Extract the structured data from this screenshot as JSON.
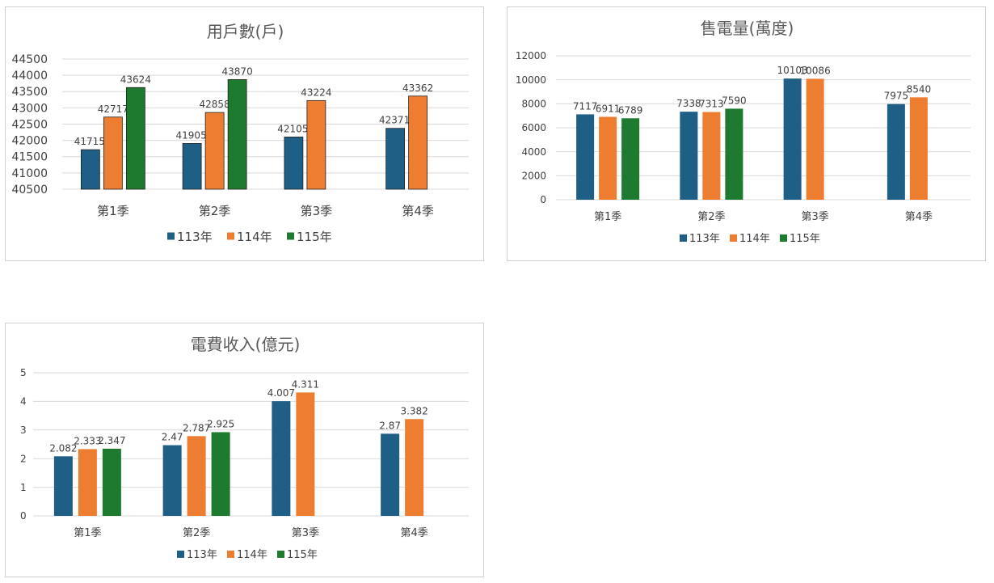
{
  "chart_data": [
    {
      "type": "bar",
      "title": "用戶數(戶)",
      "categories": [
        "第1季",
        "第2季",
        "第3季",
        "第4季"
      ],
      "series": [
        {
          "name": "113年",
          "color": "#1f5f86",
          "values": [
            41715,
            41905,
            42105,
            42371
          ]
        },
        {
          "name": "114年",
          "color": "#ed7d31",
          "values": [
            42717,
            42858,
            43224,
            43362
          ]
        },
        {
          "name": "115年",
          "color": "#1d7a2e",
          "values": [
            43624,
            43870,
            null,
            null
          ]
        }
      ],
      "ylim": [
        40500,
        44500
      ],
      "yticks": [
        "40500",
        "41000",
        "41500",
        "42000",
        "42500",
        "43000",
        "43500",
        "44000",
        "44500"
      ],
      "grid": true,
      "legend_position": "bottom"
    },
    {
      "type": "bar",
      "title": "售電量(萬度)",
      "categories": [
        "第1季",
        "第2季",
        "第3季",
        "第4季"
      ],
      "series": [
        {
          "name": "113年",
          "color": "#1f5f86",
          "values": [
            7117,
            7338,
            10103,
            7975
          ]
        },
        {
          "name": "114年",
          "color": "#ed7d31",
          "values": [
            6911,
            7313,
            10086,
            8540
          ]
        },
        {
          "name": "115年",
          "color": "#1d7a2e",
          "values": [
            6789,
            7590,
            null,
            null
          ]
        }
      ],
      "ylim": [
        0,
        12000
      ],
      "yticks": [
        "0",
        "2000",
        "4000",
        "6000",
        "8000",
        "10000",
        "12000"
      ],
      "grid": true,
      "legend_position": "bottom"
    },
    {
      "type": "bar",
      "title": "電費收入(億元)",
      "categories": [
        "第1季",
        "第2季",
        "第3季",
        "第4季"
      ],
      "series": [
        {
          "name": "113年",
          "color": "#1f5f86",
          "values": [
            2.082,
            2.47,
            4.007,
            2.87
          ]
        },
        {
          "name": "114年",
          "color": "#ed7d31",
          "values": [
            2.333,
            2.787,
            4.311,
            3.382
          ]
        },
        {
          "name": "115年",
          "color": "#1d7a2e",
          "values": [
            2.347,
            2.925,
            null,
            null
          ]
        }
      ],
      "ylim": [
        0,
        5
      ],
      "yticks": [
        "0",
        "1",
        "2",
        "3",
        "4",
        "5"
      ],
      "grid": true,
      "legend_position": "bottom"
    }
  ]
}
